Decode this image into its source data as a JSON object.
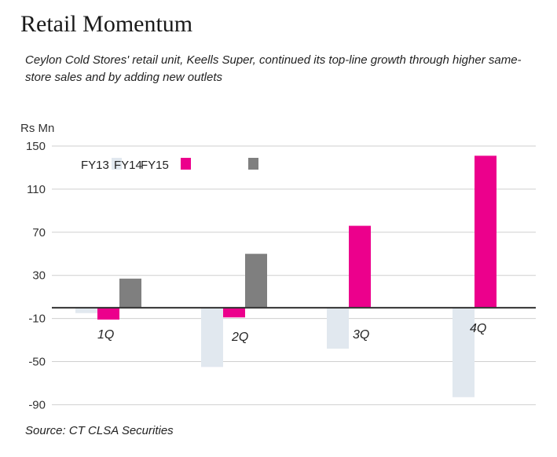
{
  "title": "Retail Momentum",
  "subtitle": "Ceylon Cold Stores' retail unit, Keells Super, continued its top-line growth through higher same-store sales and by adding new outlets",
  "source": "Source: CT CLSA Securities",
  "chart_data": {
    "type": "bar",
    "ylabel": "Rs Mn",
    "ylim": [
      -100,
      150
    ],
    "yticks": [
      150,
      110,
      70,
      30,
      -10,
      -50,
      -90
    ],
    "grid": true,
    "legend_position": "top-left",
    "categories": [
      "1Q",
      "2Q",
      "3Q",
      "4Q"
    ],
    "series": [
      {
        "name": "FY13",
        "color": "#e1e8ef",
        "values": [
          -5,
          -55,
          -38,
          -83
        ]
      },
      {
        "name": "FY14",
        "color": "#ec008c",
        "values": [
          -11,
          -9,
          76,
          141
        ]
      },
      {
        "name": "FY15",
        "color": "#7f7f7f",
        "values": [
          27,
          50,
          null,
          null
        ]
      }
    ]
  }
}
